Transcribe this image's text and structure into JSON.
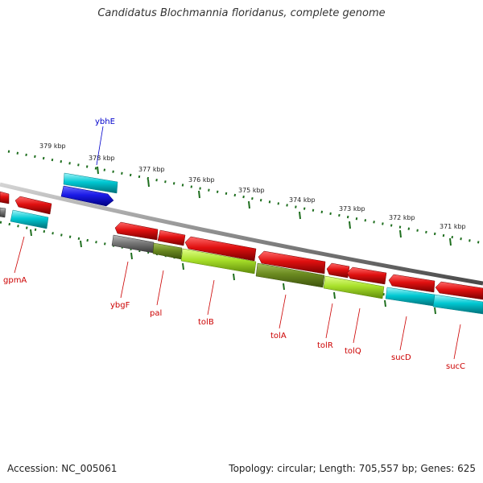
{
  "title": "Candidatus Blochmannia floridanus, complete genome",
  "footer": {
    "accession": "Accession: NC_005061",
    "summary": "Topology: circular; Length: 705,557 bp; Genes: 625"
  },
  "colors": {
    "backbone": "#8c8c8c",
    "tick_mark": "#1e6e1e",
    "red_gene": "#e01010",
    "cyan_gene": "#00c8d2",
    "blue_gene": "#1a1ae6",
    "gray_gene": "#777777",
    "olive_gene": "#6b8a20",
    "lime_gene": "#a8e02a",
    "red_label": "#cc0000",
    "blue_label": "#0000cc"
  },
  "kbp_labels": [
    "379 kbp",
    "378 kbp",
    "377 kbp",
    "376 kbp",
    "375 kbp",
    "374 kbp",
    "373 kbp",
    "372 kbp",
    "371 kbp"
  ],
  "genes": [
    {
      "name": "ybhE",
      "color": "blue"
    },
    {
      "name": "gpmA",
      "color": "red"
    },
    {
      "name": "ybgF",
      "color": "red"
    },
    {
      "name": "pal",
      "color": "red"
    },
    {
      "name": "tolB",
      "color": "red"
    },
    {
      "name": "tolA",
      "color": "red"
    },
    {
      "name": "tolR",
      "color": "red"
    },
    {
      "name": "tolQ",
      "color": "red"
    },
    {
      "name": "sucD",
      "color": "red"
    },
    {
      "name": "sucC",
      "color": "red"
    }
  ]
}
